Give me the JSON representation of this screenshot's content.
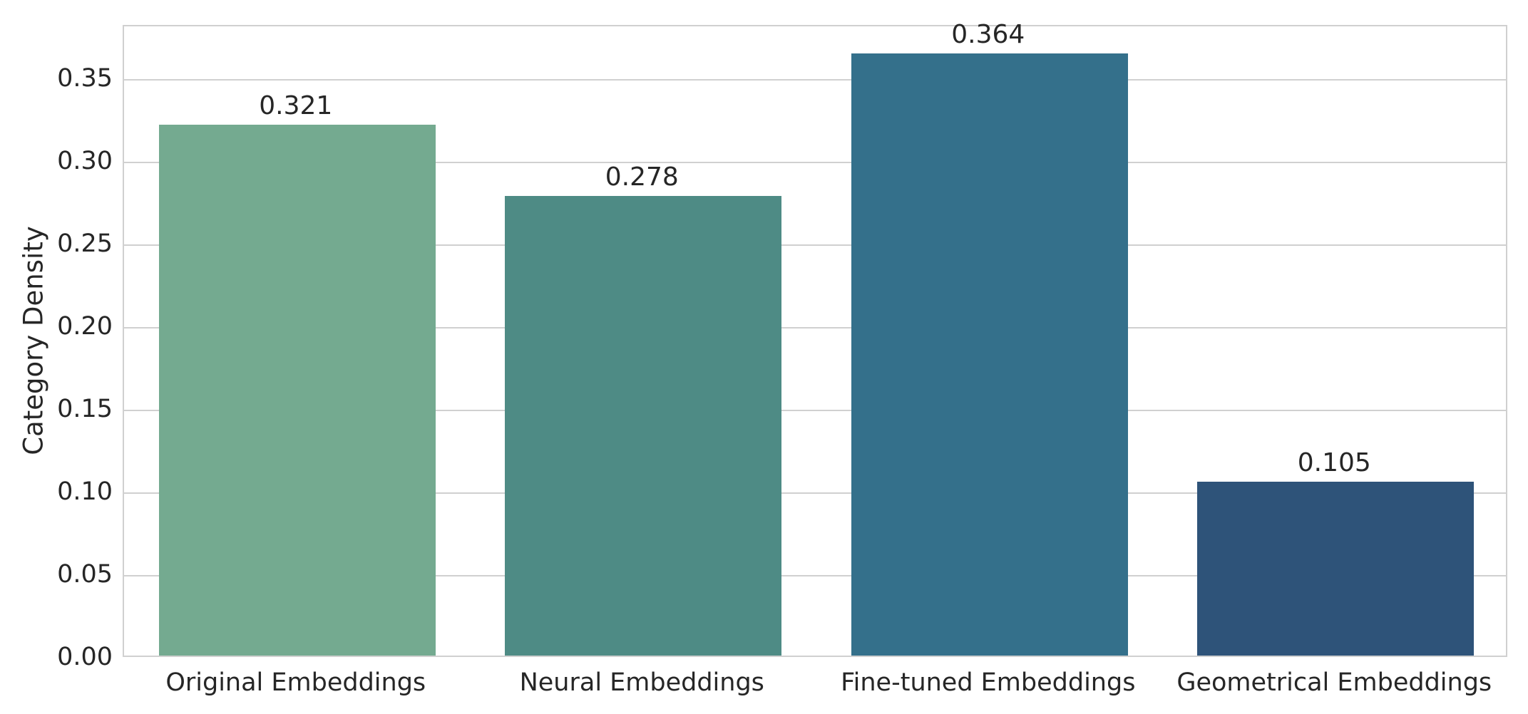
{
  "chart_data": {
    "type": "bar",
    "title": "",
    "xlabel": "",
    "ylabel": "Category Density",
    "categories": [
      "Original Embeddings",
      "Neural Embeddings",
      "Fine-tuned Embeddings",
      "Geometrical Embeddings"
    ],
    "values": [
      0.321,
      0.278,
      0.364,
      0.105
    ],
    "value_labels": [
      "0.321",
      "0.278",
      "0.364",
      "0.105"
    ],
    "bar_colors": [
      "#74aa90",
      "#4e8b85",
      "#34708b",
      "#2e5379"
    ],
    "yticks": [
      "0.00",
      "0.05",
      "0.10",
      "0.15",
      "0.20",
      "0.25",
      "0.30",
      "0.35"
    ],
    "ylim": [
      0,
      0.3822
    ],
    "grid": "horizontal",
    "legend": "none",
    "grid_color": "#d0d0d0",
    "text_color": "#262626",
    "background_color": "#ffffff",
    "bar_width_fraction": 0.8
  }
}
